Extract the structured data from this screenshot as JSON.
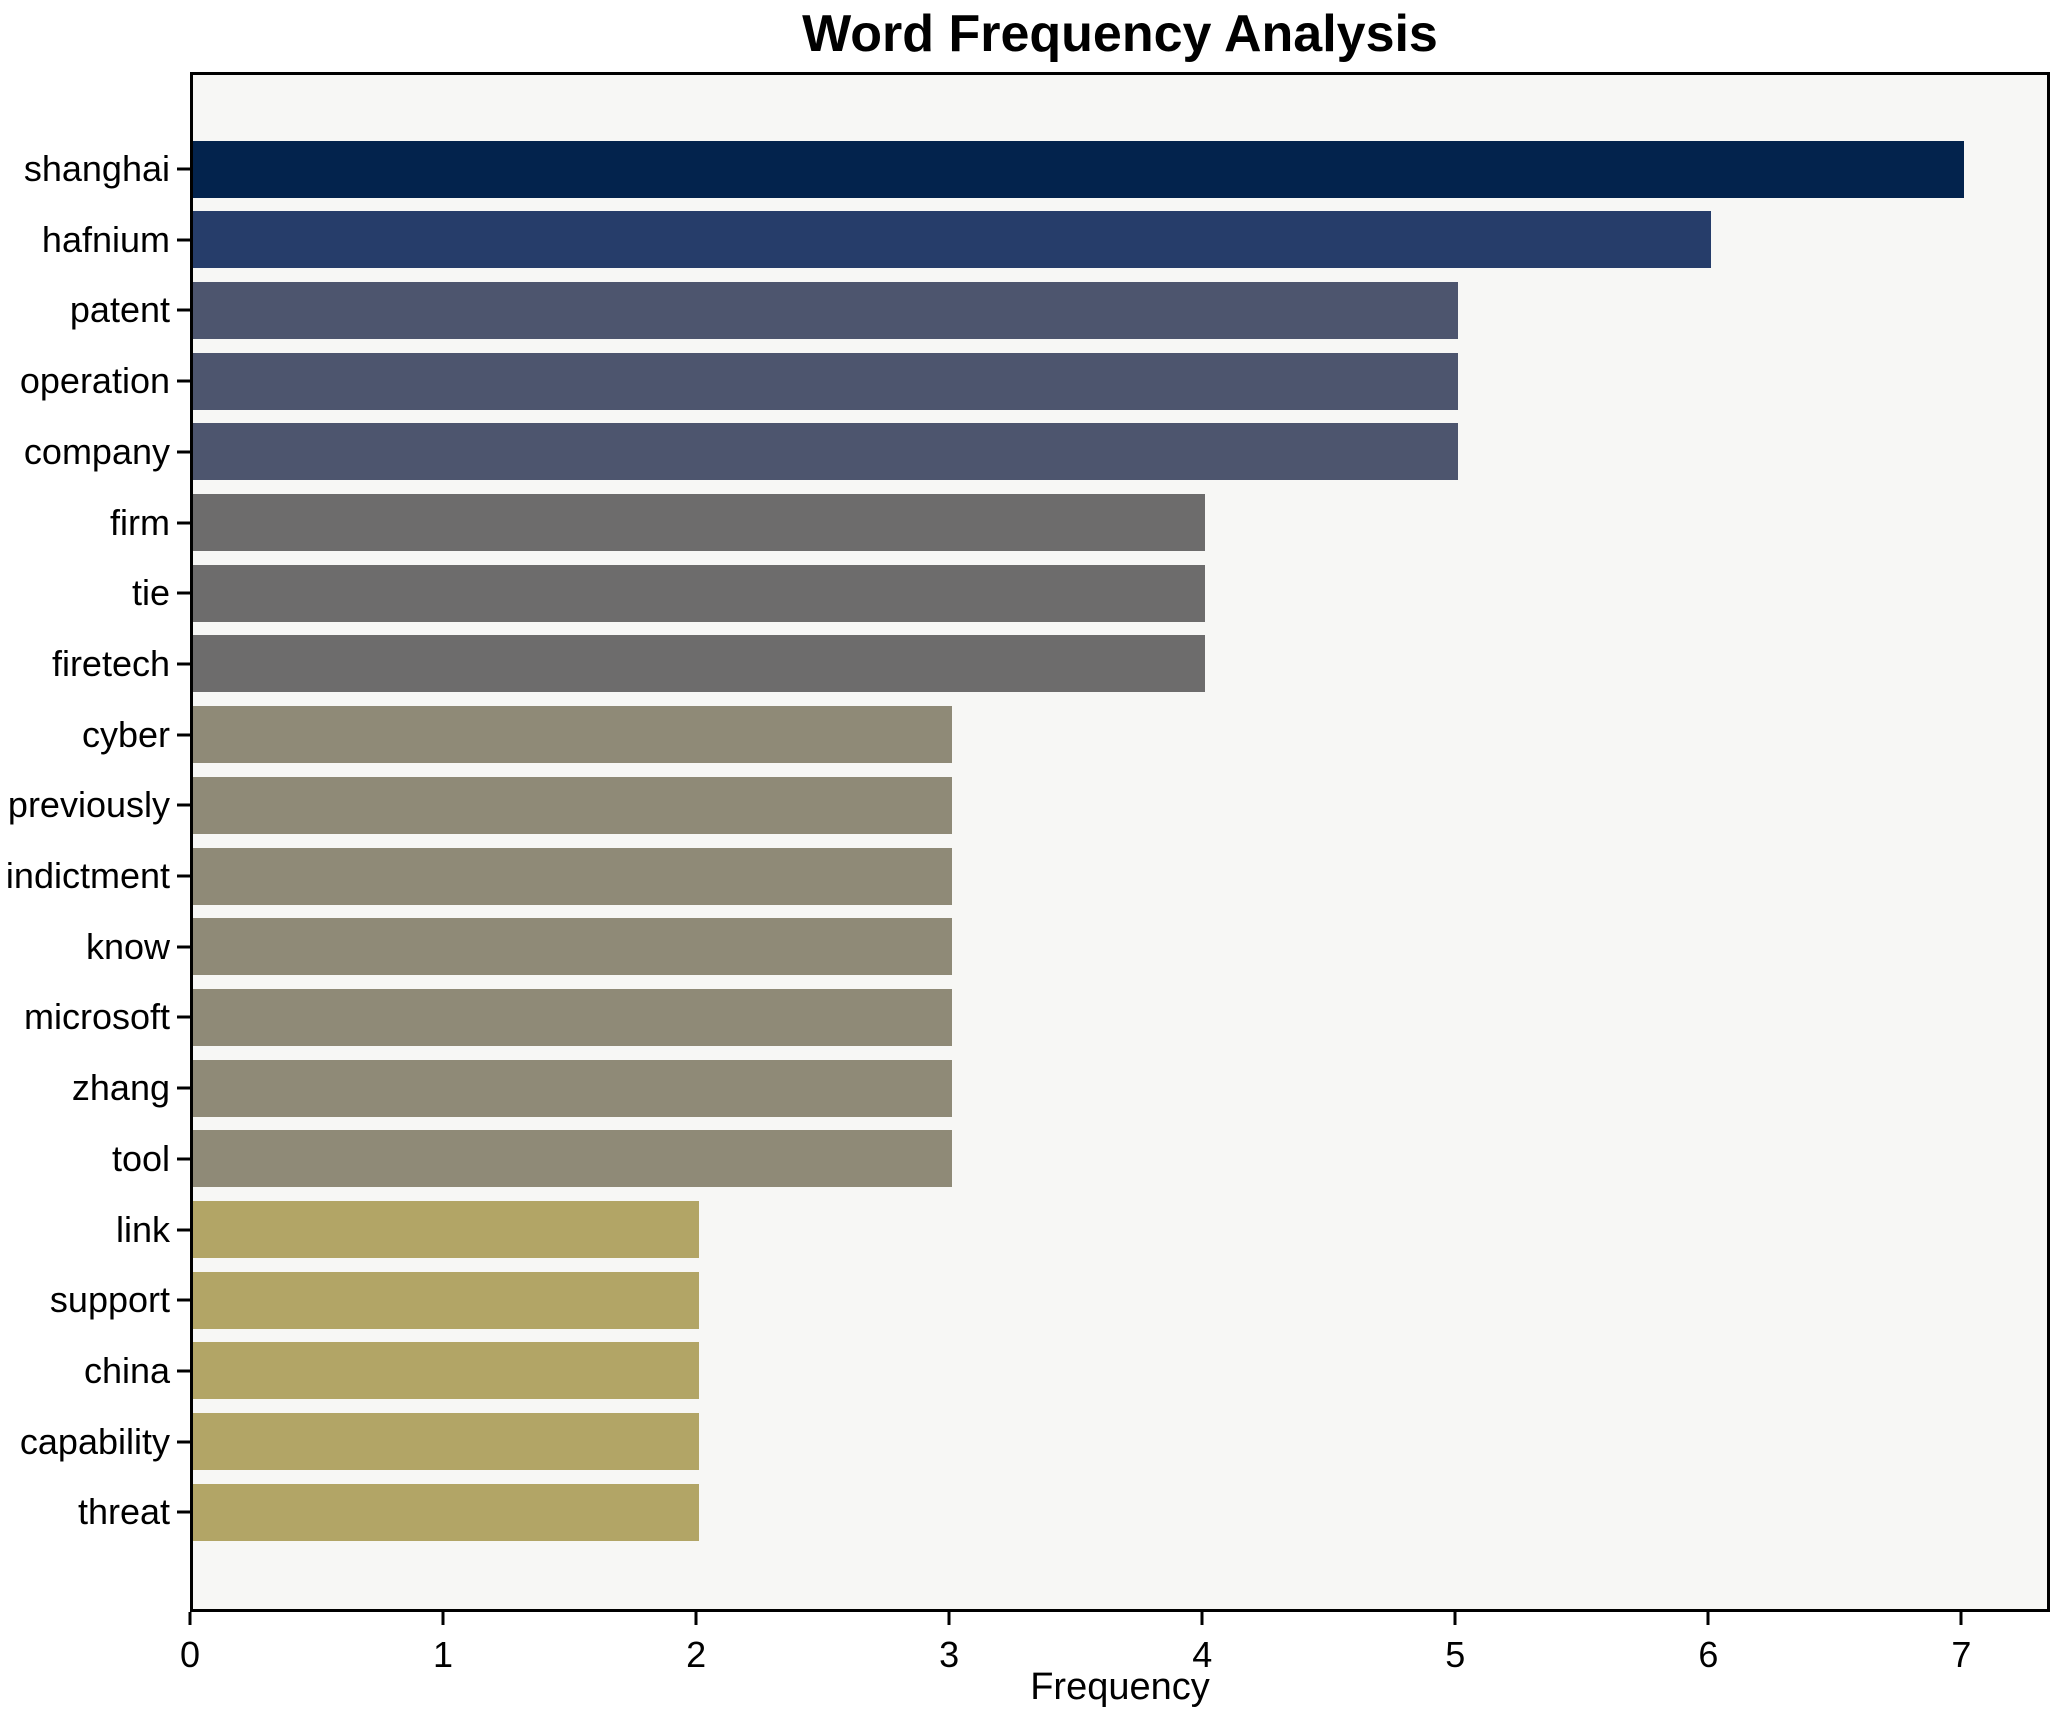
{
  "title": "Word Frequency Analysis",
  "xlabel": "Frequency",
  "chart_data": {
    "type": "bar",
    "orientation": "horizontal",
    "title": "Word Frequency Analysis",
    "xlabel": "Frequency",
    "ylabel": "",
    "categories": [
      "shanghai",
      "hafnium",
      "patent",
      "operation",
      "company",
      "firm",
      "tie",
      "firetech",
      "cyber",
      "previously",
      "indictment",
      "know",
      "microsoft",
      "zhang",
      "tool",
      "link",
      "support",
      "china",
      "capability",
      "threat"
    ],
    "values": [
      7,
      6,
      5,
      5,
      5,
      4,
      4,
      4,
      3,
      3,
      3,
      3,
      3,
      3,
      3,
      2,
      2,
      2,
      2,
      2
    ],
    "xticks": [
      0,
      1,
      2,
      3,
      4,
      5,
      6,
      7
    ],
    "xlim": [
      0,
      7.35
    ],
    "grid": false,
    "legend": false,
    "plot_background": "#f7f7f5",
    "figure_background": "#ffffff",
    "bar_colors_by_value": {
      "7": "#03234d",
      "6": "#263d6a",
      "5": "#4d556e",
      "4": "#6d6c6c",
      "3": "#8f8a77",
      "2": "#b2a566"
    }
  }
}
